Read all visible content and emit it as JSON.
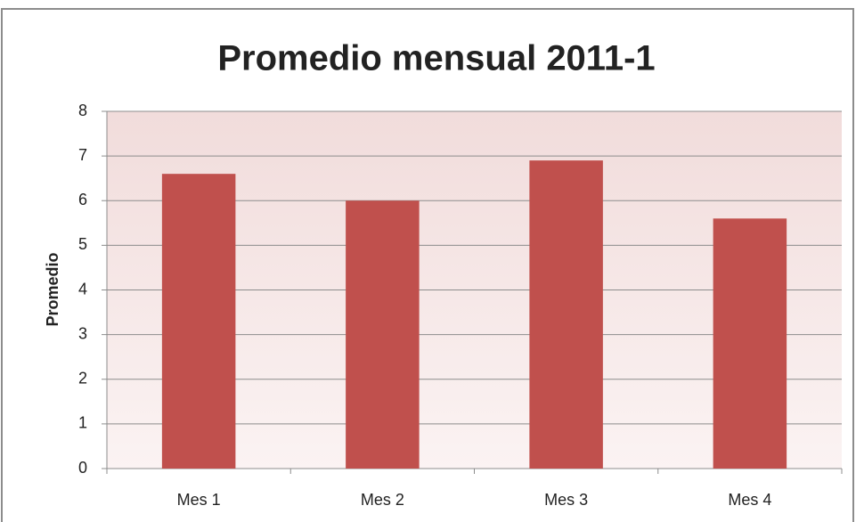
{
  "chart_data": {
    "type": "bar",
    "title": "Promedio mensual 2011-1",
    "y_label": "Promedio",
    "categories": [
      "Mes 1",
      "Mes 2",
      "Mes 3",
      "Mes 4"
    ],
    "values": [
      6.6,
      6.0,
      6.9,
      5.6
    ],
    "color": "#c0504d",
    "ylim": [
      0,
      8
    ],
    "yticks": [
      0,
      1,
      2,
      3,
      4,
      5,
      6,
      7,
      8
    ],
    "grid": true
  }
}
